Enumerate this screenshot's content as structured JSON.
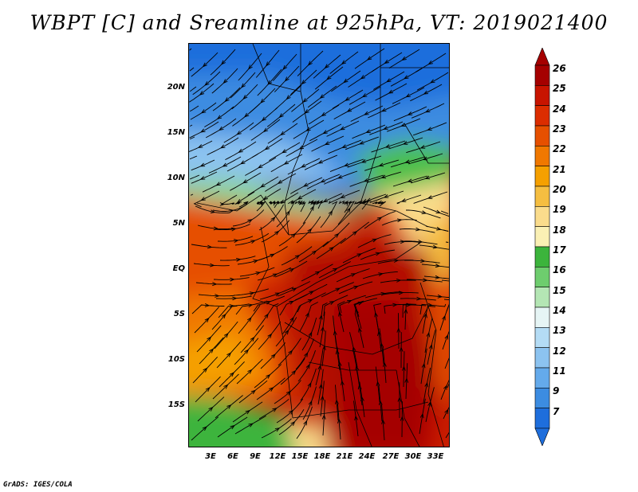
{
  "title": "WBPT [C] and Sreamline at 925hPa, VT: 2019021400",
  "credit": "GrADS: IGES/COLA",
  "lat_labels": [
    "20N",
    "15N",
    "10N",
    "5N",
    "EQ",
    "5S",
    "10S",
    "15S"
  ],
  "lon_labels": [
    "3E",
    "6E",
    "9E",
    "12E",
    "15E",
    "18E",
    "21E",
    "24E",
    "27E",
    "30E",
    "33E"
  ],
  "colorbar": {
    "labels": [
      "26",
      "25",
      "24",
      "23",
      "22",
      "21",
      "20",
      "19",
      "18",
      "17",
      "16",
      "15",
      "14",
      "13",
      "12",
      "11",
      "9",
      "7"
    ],
    "colors": [
      "#a50000",
      "#c81400",
      "#dc2d00",
      "#e65000",
      "#f07800",
      "#f5a000",
      "#f5be41",
      "#fadc8c",
      "#faf0b4",
      "#3cb43c",
      "#6ecd6e",
      "#b4e6b4",
      "#e6f5f5",
      "#b4dcf5",
      "#8cc3f0",
      "#64aaeb",
      "#3c8ce1",
      "#1e6edc"
    ]
  },
  "region": {
    "lon_min": 0,
    "lon_max": 35,
    "lat_min": -20,
    "lat_max": 24
  }
}
